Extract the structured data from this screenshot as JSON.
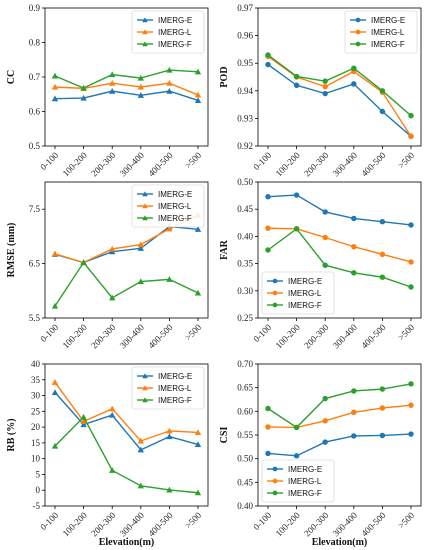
{
  "chart_data": [
    {
      "type": "line",
      "ylabel": "CC",
      "xlabel": "",
      "ylim": [
        0.5,
        0.9
      ],
      "yticks": [
        "0.5",
        "0.6",
        "0.7",
        "0.8",
        "0.9"
      ],
      "marker": "triangle",
      "legend_position": "top-right",
      "categories": [
        "0-100",
        "100-200",
        "200-300",
        "300-400",
        "400-500",
        ">500"
      ],
      "series": [
        {
          "name": "IMERG-E",
          "color": "#1f77b4",
          "values": [
            0.637,
            0.639,
            0.659,
            0.647,
            0.659,
            0.632
          ]
        },
        {
          "name": "IMERG-L",
          "color": "#ff7f0e",
          "values": [
            0.671,
            0.667,
            0.682,
            0.671,
            0.682,
            0.648
          ]
        },
        {
          "name": "IMERG-F",
          "color": "#2ca02c",
          "values": [
            0.703,
            0.668,
            0.707,
            0.697,
            0.72,
            0.715
          ]
        }
      ]
    },
    {
      "type": "line",
      "ylabel": "POD",
      "xlabel": "",
      "ylim": [
        0.92,
        0.97
      ],
      "yticks": [
        "0.92",
        "0.93",
        "0.94",
        "0.95",
        "0.96",
        "0.97"
      ],
      "marker": "circle",
      "legend_position": "top-right",
      "categories": [
        "0-100",
        "100-200",
        "200-300",
        "300-400",
        "400-500",
        ">500"
      ],
      "series": [
        {
          "name": "IMERG-E",
          "color": "#1f77b4",
          "values": [
            0.9495,
            0.942,
            0.939,
            0.9425,
            0.9325,
            0.9235
          ]
        },
        {
          "name": "IMERG-L",
          "color": "#ff7f0e",
          "values": [
            0.9525,
            0.945,
            0.9415,
            0.947,
            0.9395,
            0.9235
          ]
        },
        {
          "name": "IMERG-F",
          "color": "#2ca02c",
          "values": [
            0.953,
            0.9452,
            0.9435,
            0.9482,
            0.94,
            0.931
          ]
        }
      ]
    },
    {
      "type": "line",
      "ylabel": "RMSE (mm)",
      "xlabel": "",
      "ylim": [
        5.5,
        8.0
      ],
      "yticks": [
        "5.5",
        "6.5",
        "7.5"
      ],
      "ytick_values": [
        5.5,
        6.5,
        7.5
      ],
      "marker": "triangle",
      "legend_position": "top-right",
      "categories": [
        "0-100",
        "100-200",
        "200-300",
        "300-400",
        "400-500",
        ">500"
      ],
      "series": [
        {
          "name": "IMERG-E",
          "color": "#1f77b4",
          "values": [
            6.67,
            6.52,
            6.72,
            6.78,
            7.18,
            7.13
          ]
        },
        {
          "name": "IMERG-L",
          "color": "#ff7f0e",
          "values": [
            6.68,
            6.52,
            6.77,
            6.85,
            7.14,
            7.39
          ]
        },
        {
          "name": "IMERG-F",
          "color": "#2ca02c",
          "values": [
            5.72,
            6.52,
            5.87,
            6.17,
            6.21,
            5.96
          ]
        }
      ]
    },
    {
      "type": "line",
      "ylabel": "FAR",
      "xlabel": "",
      "ylim": [
        0.25,
        0.5
      ],
      "yticks": [
        "0.25",
        "0.30",
        "0.35",
        "0.40",
        "0.45",
        "0.50"
      ],
      "marker": "circle",
      "legend_position": "bottom-left",
      "categories": [
        "0-100",
        "100-200",
        "200-300",
        "300-400",
        "400-500",
        ">500"
      ],
      "series": [
        {
          "name": "IMERG-E",
          "color": "#1f77b4",
          "values": [
            0.473,
            0.476,
            0.445,
            0.433,
            0.427,
            0.421
          ]
        },
        {
          "name": "IMERG-L",
          "color": "#ff7f0e",
          "values": [
            0.415,
            0.414,
            0.398,
            0.381,
            0.367,
            0.353
          ]
        },
        {
          "name": "IMERG-F",
          "color": "#2ca02c",
          "values": [
            0.375,
            0.414,
            0.347,
            0.333,
            0.325,
            0.307
          ]
        }
      ]
    },
    {
      "type": "line",
      "ylabel": "RB (%)",
      "xlabel": "Elevation(m)",
      "ylim": [
        -5,
        40
      ],
      "yticks": [
        "-5",
        "0",
        "5",
        "10",
        "15",
        "20",
        "25",
        "30",
        "35",
        "40"
      ],
      "marker": "triangle",
      "legend_position": "top-right",
      "categories": [
        "0-100",
        "100-200",
        "200-300",
        "300-400",
        "400-500",
        ">500"
      ],
      "series": [
        {
          "name": "IMERG-E",
          "color": "#1f77b4",
          "values": [
            31.0,
            20.8,
            23.8,
            12.8,
            17.0,
            14.5
          ]
        },
        {
          "name": "IMERG-L",
          "color": "#ff7f0e",
          "values": [
            34.2,
            21.8,
            25.8,
            15.6,
            18.8,
            18.3
          ]
        },
        {
          "name": "IMERG-F",
          "color": "#2ca02c",
          "values": [
            14.0,
            23.2,
            6.3,
            1.4,
            0.1,
            -0.8
          ]
        }
      ]
    },
    {
      "type": "line",
      "ylabel": "CSI",
      "xlabel": "Elevation(m)",
      "ylim": [
        0.4,
        0.7
      ],
      "yticks": [
        "0.40",
        "0.45",
        "0.50",
        "0.55",
        "0.60",
        "0.65",
        "0.70"
      ],
      "marker": "circle",
      "legend_position": "bottom-left",
      "categories": [
        "0-100",
        "100-200",
        "200-300",
        "300-400",
        "400-500",
        ">500"
      ],
      "series": [
        {
          "name": "IMERG-E",
          "color": "#1f77b4",
          "values": [
            0.511,
            0.506,
            0.535,
            0.548,
            0.549,
            0.552
          ]
        },
        {
          "name": "IMERG-L",
          "color": "#ff7f0e",
          "values": [
            0.567,
            0.566,
            0.58,
            0.598,
            0.607,
            0.613
          ]
        },
        {
          "name": "IMERG-F",
          "color": "#2ca02c",
          "values": [
            0.606,
            0.566,
            0.627,
            0.643,
            0.647,
            0.658
          ]
        }
      ]
    }
  ]
}
